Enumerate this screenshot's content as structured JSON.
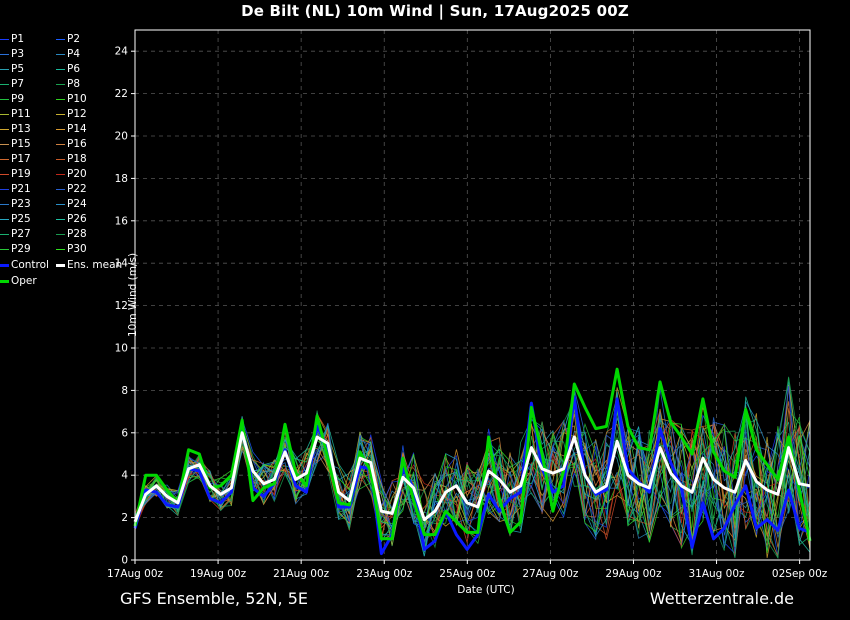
{
  "header": {
    "title": "De Bilt  (NL)  10m Wind | Sun, 17Aug2025 00Z"
  },
  "footer": {
    "left": "GFS Ensemble, 52N, 5E",
    "right": "Wetterzentrale.de"
  },
  "legend": [
    {
      "label": "P1",
      "color": "#1a3cff"
    },
    {
      "label": "P2",
      "color": "#1a5cff"
    },
    {
      "label": "P3",
      "color": "#2a70d8"
    },
    {
      "label": "P4",
      "color": "#2a88c0"
    },
    {
      "label": "P5",
      "color": "#2aa0b0"
    },
    {
      "label": "P6",
      "color": "#1ab89a"
    },
    {
      "label": "P7",
      "color": "#1ab070"
    },
    {
      "label": "P8",
      "color": "#1aa050"
    },
    {
      "label": "P9",
      "color": "#22c040"
    },
    {
      "label": "P10",
      "color": "#30d020"
    },
    {
      "label": "P11",
      "color": "#a8b830"
    },
    {
      "label": "P12",
      "color": "#c8b030"
    },
    {
      "label": "P13",
      "color": "#d0a830"
    },
    {
      "label": "P14",
      "color": "#d89a30"
    },
    {
      "label": "P15",
      "color": "#c89050"
    },
    {
      "label": "P16",
      "color": "#d08040"
    },
    {
      "label": "P17",
      "color": "#d06a30"
    },
    {
      "label": "P18",
      "color": "#c85a28"
    },
    {
      "label": "P19",
      "color": "#d04a2a"
    },
    {
      "label": "P20",
      "color": "#c0281a"
    },
    {
      "label": "P21",
      "color": "#2040e0"
    },
    {
      "label": "P22",
      "color": "#2860d0"
    },
    {
      "label": "P23",
      "color": "#2a78c8"
    },
    {
      "label": "P24",
      "color": "#2a90c8"
    },
    {
      "label": "P25",
      "color": "#28a8c0"
    },
    {
      "label": "P26",
      "color": "#1ec0a0"
    },
    {
      "label": "P27",
      "color": "#1ab070"
    },
    {
      "label": "P28",
      "color": "#1a9a50"
    },
    {
      "label": "P29",
      "color": "#28c838"
    },
    {
      "label": "P30",
      "color": "#30e020"
    },
    {
      "label": "Control",
      "color": "#0a1aff",
      "thick": true
    },
    {
      "label": "Ens. mean",
      "color": "#ffffff",
      "thick": true
    },
    {
      "label": "Oper",
      "color": "#00d800",
      "thick": true
    }
  ],
  "chart_data": {
    "type": "line",
    "title": "De Bilt  (NL)  10m Wind | Sun, 17Aug2025 00Z",
    "xlabel": "Date (UTC)",
    "ylabel": "10m Wind (m/s)",
    "ylim": [
      0,
      25
    ],
    "yticks": [
      0,
      2,
      4,
      6,
      8,
      10,
      12,
      14,
      16,
      18,
      20,
      22,
      24
    ],
    "xlim": [
      "17Aug 00z",
      "02Sep 06z"
    ],
    "xticks": [
      "17Aug 00z",
      "19Aug 00z",
      "21Aug 00z",
      "23Aug 00z",
      "25Aug 00z",
      "27Aug 00z",
      "29Aug 00z",
      "31Aug 00z",
      "02Sep 00z"
    ],
    "time_step_hours": 6,
    "grid": true,
    "series": [
      {
        "name": "Ens. mean",
        "values": [
          1.8,
          3.1,
          3.5,
          3.0,
          2.7,
          4.3,
          4.5,
          3.5,
          3.1,
          3.4,
          6.0,
          4.2,
          3.6,
          3.8,
          5.1,
          3.8,
          4.1,
          5.8,
          5.5,
          3.2,
          2.8,
          4.8,
          4.6,
          2.3,
          2.2,
          3.9,
          3.4,
          1.9,
          2.3,
          3.2,
          3.5,
          2.7,
          2.5,
          4.2,
          3.8,
          3.2,
          3.5,
          5.3,
          4.3,
          4.1,
          4.3,
          5.8,
          4.0,
          3.2,
          3.5,
          5.6,
          4.0,
          3.6,
          3.4,
          5.3,
          4.1,
          3.5,
          3.2,
          4.8,
          3.8,
          3.4,
          3.2,
          4.7,
          3.7,
          3.3,
          3.1,
          5.3,
          3.6,
          3.5
        ]
      },
      {
        "name": "Control",
        "values": [
          1.5,
          3.3,
          3.2,
          2.6,
          2.5,
          4.3,
          4.2,
          2.9,
          2.7,
          3.2,
          6.5,
          3.4,
          3.0,
          3.6,
          5.2,
          3.5,
          3.2,
          6.3,
          5.3,
          2.5,
          2.5,
          4.4,
          4.3,
          0.3,
          1.2,
          4.3,
          3.4,
          0.5,
          0.9,
          2.3,
          1.2,
          0.5,
          1.2,
          3.1,
          2.3,
          2.9,
          3.2,
          7.4,
          4.3,
          3.2,
          3.5,
          7.7,
          4.0,
          3.1,
          3.3,
          7.6,
          4.3,
          3.7,
          3.2,
          6.2,
          4.6,
          3.4,
          0.6,
          2.7,
          1.0,
          1.5,
          2.6,
          3.5,
          1.5,
          1.9,
          1.4,
          3.3,
          1.5,
          1.3
        ]
      },
      {
        "name": "Oper",
        "values": [
          1.6,
          4.0,
          4.0,
          3.3,
          2.7,
          5.2,
          5.0,
          3.4,
          3.5,
          4.0,
          6.6,
          2.8,
          3.4,
          3.6,
          6.4,
          4.1,
          3.5,
          6.8,
          4.8,
          2.7,
          2.6,
          5.1,
          4.2,
          1.0,
          1.0,
          4.8,
          2.8,
          1.2,
          1.2,
          2.3,
          1.8,
          1.3,
          1.3,
          5.8,
          2.9,
          1.3,
          1.8,
          7.2,
          5.0,
          2.3,
          4.2,
          8.3,
          7.2,
          6.2,
          6.3,
          9.0,
          6.3,
          5.3,
          5.2,
          8.4,
          6.5,
          5.8,
          5.0,
          7.6,
          5.1,
          4.2,
          3.9,
          7.1,
          5.2,
          4.5,
          3.8,
          5.8,
          3.3,
          0.9
        ]
      }
    ]
  }
}
